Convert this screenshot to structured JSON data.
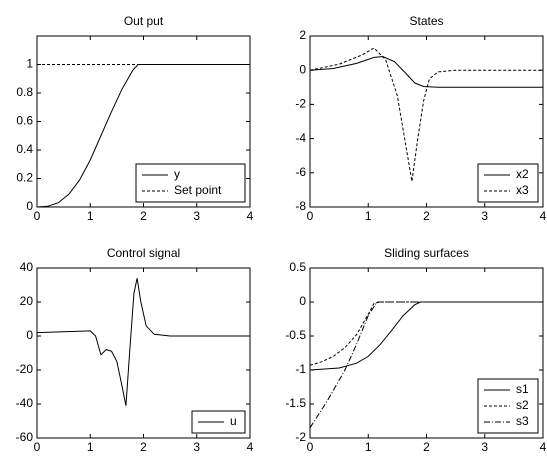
{
  "chart_data": [
    {
      "type": "line",
      "title": "Out put",
      "xlim": [
        0,
        4
      ],
      "xticks": [
        0,
        1,
        2,
        3,
        4
      ],
      "ylim": [
        0,
        1.2
      ],
      "yticks": [
        0,
        0.2,
        0.4,
        0.6,
        0.8,
        1
      ],
      "legend": "lower-right",
      "series": [
        {
          "name": "y",
          "color": "#000000",
          "style": "solid",
          "x": [
            0,
            0.2,
            0.4,
            0.6,
            0.8,
            1.0,
            1.2,
            1.4,
            1.6,
            1.8,
            1.9,
            2,
            4
          ],
          "values": [
            0,
            0.005,
            0.03,
            0.09,
            0.19,
            0.33,
            0.5,
            0.67,
            0.83,
            0.96,
            1,
            1,
            1
          ]
        },
        {
          "name": "Set point",
          "color": "#000000",
          "style": "dashed",
          "x": [
            0,
            4
          ],
          "values": [
            1,
            1
          ]
        }
      ]
    },
    {
      "type": "line",
      "title": "States",
      "xlim": [
        0,
        4
      ],
      "xticks": [
        0,
        1,
        2,
        3,
        4
      ],
      "ylim": [
        -8,
        2
      ],
      "yticks": [
        -8,
        -6,
        -4,
        -2,
        0,
        2
      ],
      "legend": "lower-right",
      "series": [
        {
          "name": "x2",
          "color": "#000000",
          "style": "solid",
          "x": [
            0,
            0.4,
            0.8,
            1.1,
            1.25,
            1.45,
            1.65,
            1.8,
            1.95,
            2.2,
            4
          ],
          "values": [
            0,
            0.1,
            0.4,
            0.75,
            0.8,
            0.5,
            -0.2,
            -0.75,
            -0.95,
            -1,
            -1
          ]
        },
        {
          "name": "x3",
          "color": "#000000",
          "style": "dashed",
          "x": [
            0,
            0.5,
            0.9,
            1.1,
            1.3,
            1.5,
            1.65,
            1.75,
            1.85,
            1.95,
            2.05,
            2.2,
            2.5,
            4
          ],
          "values": [
            0,
            0.35,
            0.9,
            1.3,
            0.6,
            -1.5,
            -4.5,
            -6.5,
            -4,
            -1.8,
            -0.5,
            -0.1,
            0,
            0
          ]
        }
      ]
    },
    {
      "type": "line",
      "title": "Control signal",
      "xlim": [
        0,
        4
      ],
      "xticks": [
        0,
        1,
        2,
        3,
        4
      ],
      "ylim": [
        -60,
        40
      ],
      "yticks": [
        -60,
        -40,
        -20,
        0,
        20,
        40
      ],
      "legend": "lower-right",
      "series": [
        {
          "name": "u",
          "color": "#000000",
          "style": "solid",
          "x": [
            0,
            0.5,
            1.0,
            1.1,
            1.2,
            1.3,
            1.4,
            1.5,
            1.6,
            1.67,
            1.75,
            1.82,
            1.88,
            1.95,
            2.05,
            2.2,
            2.5,
            4
          ],
          "values": [
            2,
            2.5,
            3,
            0,
            -11,
            -8,
            -9,
            -15,
            -30,
            -41,
            -5,
            25,
            34,
            20,
            6,
            1,
            0,
            0
          ]
        }
      ]
    },
    {
      "type": "line",
      "title": "Sliding surfaces",
      "xlim": [
        0,
        4
      ],
      "xticks": [
        0,
        1,
        2,
        3,
        4
      ],
      "ylim": [
        -2,
        0.5
      ],
      "yticks": [
        -2,
        -1.5,
        -1,
        -0.5,
        0,
        0.5
      ],
      "legend": "lower-right",
      "series": [
        {
          "name": "s1",
          "color": "#000000",
          "style": "solid",
          "x": [
            0,
            0.5,
            0.8,
            1.0,
            1.2,
            1.4,
            1.6,
            1.8,
            1.9,
            4
          ],
          "values": [
            -1,
            -0.97,
            -0.9,
            -0.8,
            -0.63,
            -0.42,
            -0.2,
            -0.04,
            0,
            0
          ]
        },
        {
          "name": "s2",
          "color": "#000000",
          "style": "dashed",
          "x": [
            0,
            0.2,
            0.4,
            0.6,
            0.8,
            1.0,
            1.1,
            1.2,
            4
          ],
          "values": [
            -0.93,
            -0.88,
            -0.8,
            -0.67,
            -0.48,
            -0.18,
            -0.02,
            0,
            0
          ]
        },
        {
          "name": "s3",
          "color": "#000000",
          "style": "dashdot",
          "x": [
            0,
            0.3,
            0.6,
            0.8,
            1.0,
            1.15,
            1.25,
            4
          ],
          "values": [
            -1.85,
            -1.45,
            -1.0,
            -0.62,
            -0.2,
            0,
            0,
            0
          ]
        }
      ]
    }
  ]
}
